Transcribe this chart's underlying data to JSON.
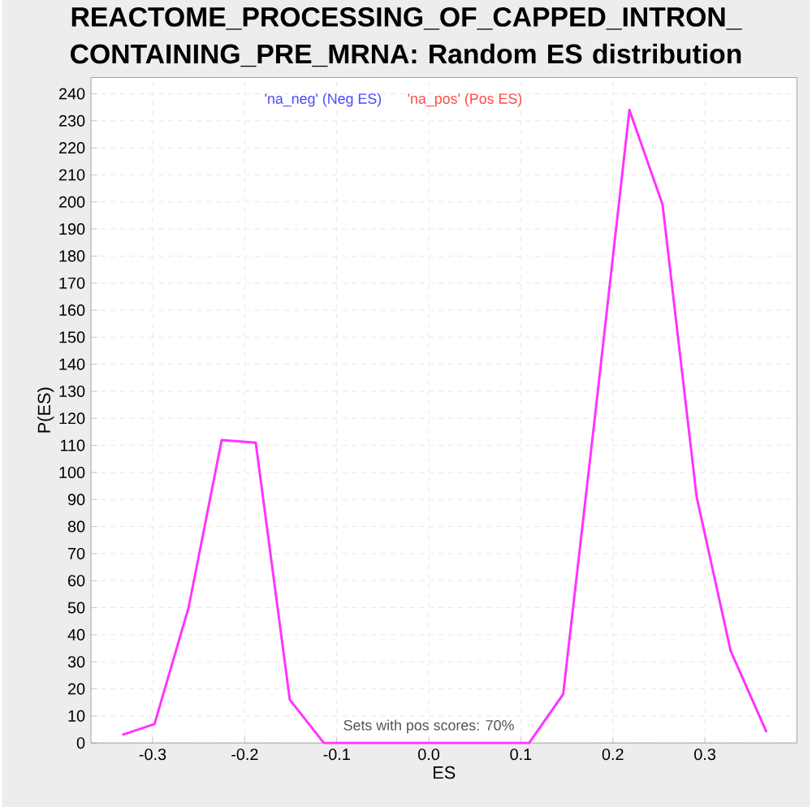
{
  "chart_data": {
    "type": "line",
    "title": "REACTOME_PROCESSING_OF_CAPPED_INTRON_CONTAINING_PRE_MRNA: Random ES distribution",
    "xlabel": "ES",
    "ylabel": "P(ES)",
    "x": [
      -0.333,
      -0.298,
      -0.261,
      -0.225,
      -0.188,
      -0.151,
      -0.114,
      -0.077,
      -0.04,
      -0.003,
      0.034,
      0.071,
      0.109,
      0.146,
      0.181,
      0.218,
      0.254,
      0.291,
      0.328,
      0.367
    ],
    "values": [
      3,
      7,
      50,
      112,
      111,
      16,
      0,
      0,
      0,
      0,
      0,
      0,
      0,
      18,
      122,
      234,
      199,
      91,
      34,
      4
    ],
    "color": "#ff33ff",
    "xlim": [
      -0.367,
      0.4
    ],
    "ylim": [
      0,
      246
    ],
    "xticks": [
      -0.3,
      -0.2,
      -0.1,
      {
        "value": 0,
        "label": "0.0"
      },
      0.1,
      0.2,
      0.3
    ],
    "yticks": [
      0,
      10,
      20,
      30,
      40,
      50,
      60,
      70,
      80,
      90,
      100,
      110,
      120,
      130,
      140,
      150,
      160,
      170,
      180,
      190,
      200,
      210,
      220,
      230,
      240
    ],
    "grid": true,
    "annotations": [
      "'na_neg' (Neg ES)",
      "'na_pos' (Pos ES)",
      "Sets with pos scores: 70%"
    ]
  }
}
